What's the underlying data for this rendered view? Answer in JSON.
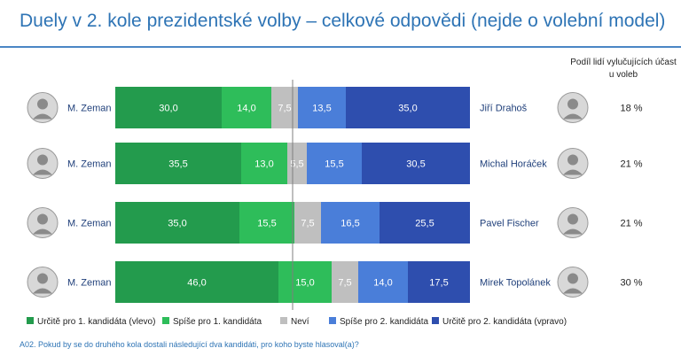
{
  "title": "Duely v 2. kole prezidentské volby – celkové odpovědi (nejde o volební model)",
  "share_header": "Podíl lidí vylučujících účast u voleb",
  "footnote": "A02. Pokud by se do druhého kola dostali následující dva kandidáti, pro koho byste hlasoval(a)?",
  "colors": {
    "urcite_1": "#239b4d",
    "spise_1": "#2ebd5a",
    "nevi": "#bfbfbf",
    "spise_2": "#4a7ed9",
    "urcite_2": "#2e4eae",
    "avatar_bg": "#d8d8d8",
    "name_text": "#1f3f7a"
  },
  "chart_data": {
    "type": "bar",
    "stacked": true,
    "orientation": "horizontal",
    "xlim": [
      0,
      100
    ],
    "legend_position": "bottom",
    "categories": [
      {
        "left": "M. Zeman",
        "right": "Jiří Drahoš",
        "share": "18 %"
      },
      {
        "left": "M. Zeman",
        "right": "Michal Horáček",
        "share": "21 %"
      },
      {
        "left": "M. Zeman",
        "right": "Pavel Fischer",
        "share": "21 %"
      },
      {
        "left": "M. Zeman",
        "right": "Mirek Topolánek",
        "share": "30 %"
      }
    ],
    "series": [
      {
        "name": "Určitě pro 1. kandidáta (vlevo)",
        "color_key": "urcite_1",
        "values": [
          30.0,
          35.5,
          35.0,
          46.0
        ],
        "labels": [
          "30,0",
          "35,5",
          "35,0",
          "46,0"
        ]
      },
      {
        "name": "Spíše pro 1. kandidáta",
        "color_key": "spise_1",
        "values": [
          14.0,
          13.0,
          15.5,
          15.0
        ],
        "labels": [
          "14,0",
          "13,0",
          "15,5",
          "15,0"
        ]
      },
      {
        "name": "Neví",
        "color_key": "nevi",
        "values": [
          7.5,
          5.5,
          7.5,
          7.5
        ],
        "labels": [
          "7,5",
          "5,5",
          "7,5",
          "7,5"
        ]
      },
      {
        "name": "Spíše pro 2. kandidáta",
        "color_key": "spise_2",
        "values": [
          13.5,
          15.5,
          16.5,
          14.0
        ],
        "labels": [
          "13,5",
          "15,5",
          "16,5",
          "14,0"
        ]
      },
      {
        "name": "Určitě pro 2. kandidáta (vpravo)",
        "color_key": "urcite_2",
        "values": [
          35.0,
          30.5,
          25.5,
          17.5
        ],
        "labels": [
          "35,0",
          "30,5",
          "25,5",
          "17,5"
        ]
      }
    ]
  }
}
